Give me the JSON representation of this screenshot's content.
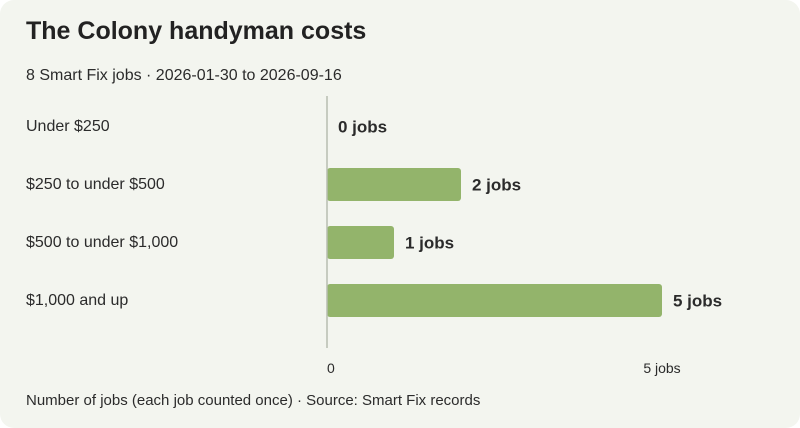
{
  "title": "The Colony handyman costs",
  "subtitle": "8 Smart Fix jobs · 2026-01-30 to 2026-09-16",
  "footnote": "Number of jobs (each job counted once) · Source: Smart Fix records",
  "colors": {
    "background": "#f3f5ef",
    "bar": "#93b46b",
    "axis": "#b8bdb0",
    "text": "#2b2b2b"
  },
  "chart_data": {
    "type": "bar",
    "orientation": "horizontal",
    "categories": [
      "Under $250",
      "$250 to under $500",
      "$500 to under $1,000",
      "$1,000 and up"
    ],
    "values": [
      0,
      2,
      1,
      5
    ],
    "data_labels": [
      "0 jobs",
      "2 jobs",
      "1 jobs",
      "5 jobs"
    ],
    "xlim": [
      0,
      5
    ],
    "x_ticks": [
      {
        "value": 0,
        "label": "0"
      },
      {
        "value": 5,
        "label": "5 jobs"
      }
    ],
    "grid": false,
    "legend": "none"
  }
}
